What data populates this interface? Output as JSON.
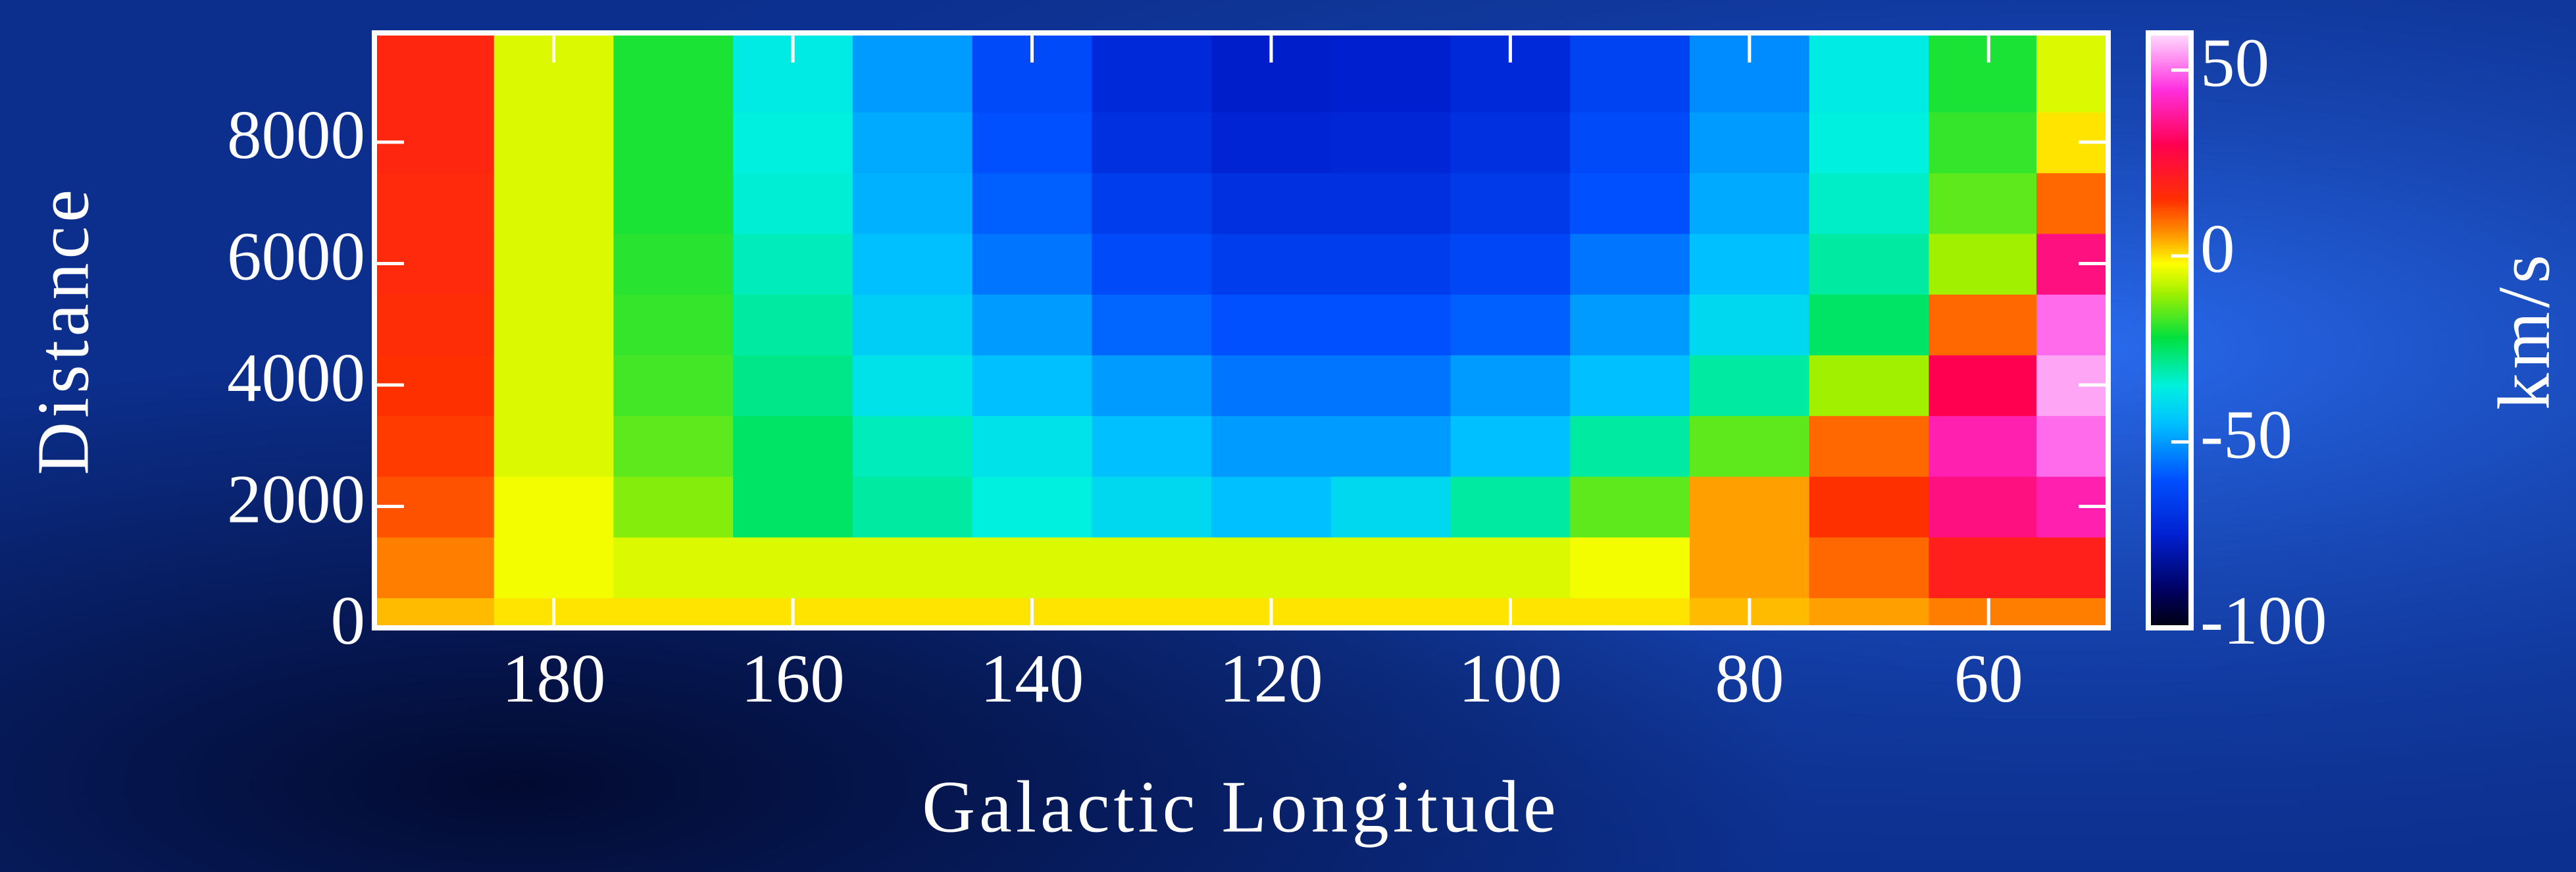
{
  "chart_data": {
    "type": "heatmap",
    "xlabel": "Galactic Longitude",
    "ylabel": "Distance",
    "x": [
      190,
      180,
      170,
      160,
      150,
      140,
      130,
      120,
      110,
      100,
      90,
      80,
      70,
      60,
      52
    ],
    "y": [
      0,
      1000,
      2000,
      3000,
      4000,
      5000,
      6000,
      7000,
      8000,
      9000
    ],
    "z": [
      [
        3,
        0,
        0,
        0,
        0,
        0,
        0,
        0,
        0,
        0,
        0,
        3,
        5,
        8,
        8
      ],
      [
        8,
        -3,
        -5,
        -5,
        -5,
        -5,
        -5,
        -5,
        -5,
        -5,
        -3,
        5,
        10,
        20,
        20
      ],
      [
        12,
        -3,
        -12,
        -25,
        -30,
        -35,
        -40,
        -45,
        -40,
        -30,
        -15,
        5,
        15,
        35,
        40
      ],
      [
        14,
        -5,
        -15,
        -25,
        -32,
        -38,
        -45,
        -50,
        -50,
        -45,
        -30,
        -15,
        10,
        40,
        50
      ],
      [
        15,
        -5,
        -17,
        -28,
        -38,
        -45,
        -50,
        -55,
        -55,
        -50,
        -45,
        -30,
        -10,
        30,
        55
      ],
      [
        16,
        -5,
        -18,
        -30,
        -42,
        -50,
        -57,
        -60,
        -60,
        -58,
        -50,
        -40,
        -25,
        10,
        50
      ],
      [
        17,
        -5,
        -19,
        -32,
        -45,
        -55,
        -62,
        -66,
        -66,
        -63,
        -55,
        -45,
        -30,
        -10,
        35
      ],
      [
        17,
        -5,
        -20,
        -34,
        -47,
        -58,
        -66,
        -70,
        -70,
        -67,
        -60,
        -48,
        -33,
        -15,
        10
      ],
      [
        18,
        -5,
        -20,
        -35,
        -48,
        -60,
        -70,
        -74,
        -73,
        -70,
        -62,
        -50,
        -35,
        -18,
        0
      ],
      [
        18,
        -5,
        -20,
        -36,
        -50,
        -62,
        -72,
        -76,
        -75,
        -72,
        -64,
        -52,
        -36,
        -20,
        -5
      ]
    ],
    "xlim": [
      195,
      50
    ],
    "ylim": [
      0,
      9800
    ],
    "xticks": [
      180,
      160,
      140,
      120,
      100,
      80,
      60
    ],
    "yticks": [
      0,
      2000,
      4000,
      6000,
      8000
    ],
    "colorbar": {
      "label": "km/s",
      "lim": [
        -100,
        60
      ],
      "ticks": [
        -100,
        -50,
        0,
        50
      ]
    },
    "colorscale": [
      {
        "value": -100,
        "color": "#000010"
      },
      {
        "value": -90,
        "color": "#000060"
      },
      {
        "value": -75,
        "color": "#0020d0"
      },
      {
        "value": -60,
        "color": "#0050ff"
      },
      {
        "value": -45,
        "color": "#00c0ff"
      },
      {
        "value": -35,
        "color": "#00f0e0"
      },
      {
        "value": -22,
        "color": "#00e040"
      },
      {
        "value": -10,
        "color": "#a0f000"
      },
      {
        "value": -2,
        "color": "#ffff00"
      },
      {
        "value": 5,
        "color": "#ffa000"
      },
      {
        "value": 15,
        "color": "#ff3000"
      },
      {
        "value": 30,
        "color": "#ff0050"
      },
      {
        "value": 45,
        "color": "#ff30e0"
      },
      {
        "value": 60,
        "color": "#ffe0ff"
      }
    ]
  }
}
